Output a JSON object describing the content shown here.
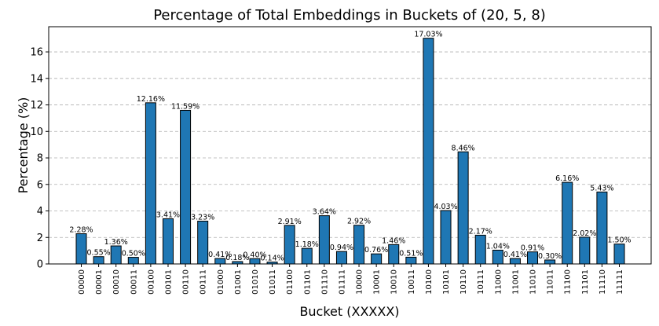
{
  "chart_data": {
    "type": "bar",
    "title": "Percentage of Total Embeddings in Buckets of (20, 5, 8)",
    "xlabel": "Bucket (XXXXX)",
    "ylabel": "Percentage (%)",
    "ylim": [
      0,
      17.9
    ],
    "yticks": [
      "0",
      "2",
      "4",
      "6",
      "8",
      "10",
      "12",
      "14",
      "16"
    ],
    "grid": "y-dashed",
    "bar_color": "#1f77b4",
    "categories": [
      "00000",
      "00001",
      "00010",
      "00011",
      "00100",
      "00101",
      "00110",
      "00111",
      "01000",
      "01001",
      "01010",
      "01011",
      "01100",
      "01101",
      "01110",
      "01111",
      "10000",
      "10001",
      "10010",
      "10011",
      "10100",
      "10101",
      "10110",
      "10111",
      "11000",
      "11001",
      "11010",
      "11011",
      "11100",
      "11101",
      "11110",
      "11111"
    ],
    "values": [
      2.28,
      0.55,
      1.36,
      0.5,
      12.16,
      3.41,
      11.59,
      3.23,
      0.41,
      0.18,
      0.4,
      0.14,
      2.91,
      1.18,
      3.64,
      0.94,
      2.92,
      0.76,
      1.46,
      0.51,
      17.03,
      4.03,
      8.46,
      2.17,
      1.04,
      0.41,
      0.91,
      0.3,
      6.16,
      2.02,
      5.43,
      1.5
    ],
    "data_labels": [
      "2.28%",
      "0.55%",
      "1.36%",
      "0.50%",
      "12.16%",
      "3.41%",
      "11.59%",
      "3.23%",
      "0.41%",
      "0.18%",
      "0.40%",
      "0.14%",
      "2.91%",
      "1.18%",
      "3.64%",
      "0.94%",
      "2.92%",
      "0.76%",
      "1.46%",
      "0.51%",
      "17.03%",
      "4.03%",
      "8.46%",
      "2.17%",
      "1.04%",
      "0.41%",
      "0.91%",
      "0.30%",
      "6.16%",
      "2.02%",
      "5.43%",
      "1.50%"
    ]
  }
}
